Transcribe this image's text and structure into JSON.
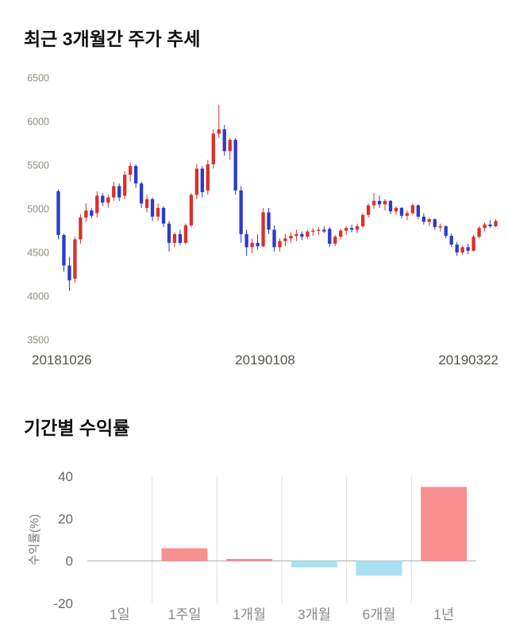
{
  "chart_data": [
    {
      "type": "candlestick",
      "title": "최근 3개월간 주가 추세",
      "ylim": [
        3500,
        6500
      ],
      "yticks": [
        3500,
        4000,
        4500,
        5000,
        5500,
        6000,
        6500
      ],
      "xticks": [
        "20181026",
        "20190108",
        "20190322"
      ],
      "up_color": "#d8312b",
      "down_color": "#2d3bc8",
      "candles": [
        [
          5200,
          5220,
          4650,
          4700
        ],
        [
          4700,
          4720,
          4280,
          4350
        ],
        [
          4350,
          4450,
          4060,
          4180
        ],
        [
          4200,
          4680,
          4150,
          4650
        ],
        [
          4650,
          4940,
          4600,
          4900
        ],
        [
          4900,
          5060,
          4850,
          4980
        ],
        [
          4980,
          5010,
          4890,
          4920
        ],
        [
          4950,
          5200,
          4900,
          5150
        ],
        [
          5150,
          5180,
          5030,
          5070
        ],
        [
          5070,
          5160,
          5010,
          5130
        ],
        [
          5130,
          5310,
          5090,
          5260
        ],
        [
          5260,
          5290,
          5090,
          5130
        ],
        [
          5150,
          5430,
          5110,
          5390
        ],
        [
          5390,
          5530,
          5310,
          5490
        ],
        [
          5490,
          5510,
          5240,
          5290
        ],
        [
          5290,
          5310,
          5010,
          5060
        ],
        [
          5010,
          5160,
          4960,
          5110
        ],
        [
          5110,
          5130,
          4860,
          4910
        ],
        [
          4910,
          5060,
          4860,
          5010
        ],
        [
          5010,
          5030,
          4790,
          4830
        ],
        [
          4830,
          4860,
          4510,
          4610
        ],
        [
          4610,
          4730,
          4560,
          4710
        ],
        [
          4710,
          4760,
          4580,
          4610
        ],
        [
          4610,
          4830,
          4590,
          4810
        ],
        [
          4810,
          5180,
          4790,
          5160
        ],
        [
          5160,
          5510,
          5110,
          5460
        ],
        [
          5460,
          5490,
          5130,
          5190
        ],
        [
          5210,
          5560,
          5160,
          5510
        ],
        [
          5510,
          5910,
          5460,
          5860
        ],
        [
          5860,
          6190,
          5810,
          5910
        ],
        [
          5910,
          5960,
          5610,
          5660
        ],
        [
          5660,
          5810,
          5560,
          5790
        ],
        [
          5790,
          5810,
          5160,
          5210
        ],
        [
          5210,
          5260,
          4610,
          4710
        ],
        [
          4710,
          4760,
          4460,
          4560
        ],
        [
          4560,
          4660,
          4490,
          4610
        ],
        [
          4610,
          4710,
          4530,
          4570
        ],
        [
          4570,
          5010,
          4560,
          4960
        ],
        [
          4960,
          5010,
          4710,
          4760
        ],
        [
          4760,
          4810,
          4510,
          4560
        ],
        [
          4560,
          4660,
          4510,
          4630
        ],
        [
          4630,
          4710,
          4570,
          4660
        ],
        [
          4660,
          4730,
          4610,
          4690
        ],
        [
          4690,
          4760,
          4630,
          4710
        ],
        [
          4710,
          4740,
          4640,
          4680
        ],
        [
          4680,
          4760,
          4650,
          4740
        ],
        [
          4740,
          4780,
          4690,
          4750
        ],
        [
          4750,
          4790,
          4700,
          4760
        ],
        [
          4760,
          4800,
          4720,
          4740
        ],
        [
          4770,
          4790,
          4560,
          4600
        ],
        [
          4600,
          4700,
          4570,
          4680
        ],
        [
          4680,
          4770,
          4650,
          4750
        ],
        [
          4750,
          4800,
          4700,
          4780
        ],
        [
          4780,
          4820,
          4730,
          4760
        ],
        [
          4760,
          4830,
          4720,
          4800
        ],
        [
          4800,
          4950,
          4780,
          4930
        ],
        [
          4930,
          5060,
          4900,
          5040
        ],
        [
          5040,
          5180,
          5000,
          5090
        ],
        [
          5090,
          5150,
          5010,
          5050
        ],
        [
          5050,
          5110,
          4980,
          5090
        ],
        [
          5090,
          5100,
          4940,
          4970
        ],
        [
          4970,
          5030,
          4930,
          5010
        ],
        [
          5010,
          5020,
          4890,
          4920
        ],
        [
          4920,
          4980,
          4870,
          4950
        ],
        [
          4950,
          5060,
          4930,
          5040
        ],
        [
          5040,
          5050,
          4880,
          4910
        ],
        [
          4910,
          4950,
          4820,
          4850
        ],
        [
          4850,
          4900,
          4800,
          4880
        ],
        [
          4880,
          4890,
          4760,
          4790
        ],
        [
          4790,
          4830,
          4740,
          4800
        ],
        [
          4800,
          4810,
          4660,
          4690
        ],
        [
          4690,
          4720,
          4560,
          4590
        ],
        [
          4590,
          4620,
          4460,
          4500
        ],
        [
          4500,
          4580,
          4470,
          4560
        ],
        [
          4560,
          4600,
          4480,
          4520
        ],
        [
          4520,
          4700,
          4510,
          4680
        ],
        [
          4680,
          4800,
          4660,
          4780
        ],
        [
          4780,
          4840,
          4740,
          4820
        ],
        [
          4820,
          4870,
          4780,
          4800
        ],
        [
          4800,
          4880,
          4790,
          4860
        ]
      ]
    },
    {
      "type": "bar",
      "title": "기간별 수익률",
      "ylabel": "수익률(%)",
      "categories": [
        "1일",
        "1주일",
        "1개월",
        "3개월",
        "6개월",
        "1년"
      ],
      "values": [
        0,
        6,
        1,
        -3,
        -7,
        35
      ],
      "ylim": [
        -20,
        40
      ],
      "yticks": [
        40,
        20,
        0,
        -20
      ],
      "positive_color": "#f7908e",
      "negative_color": "#a9e0f2",
      "grid_color": "#e2e2e2",
      "axis_color": "#aaaaaa"
    }
  ]
}
